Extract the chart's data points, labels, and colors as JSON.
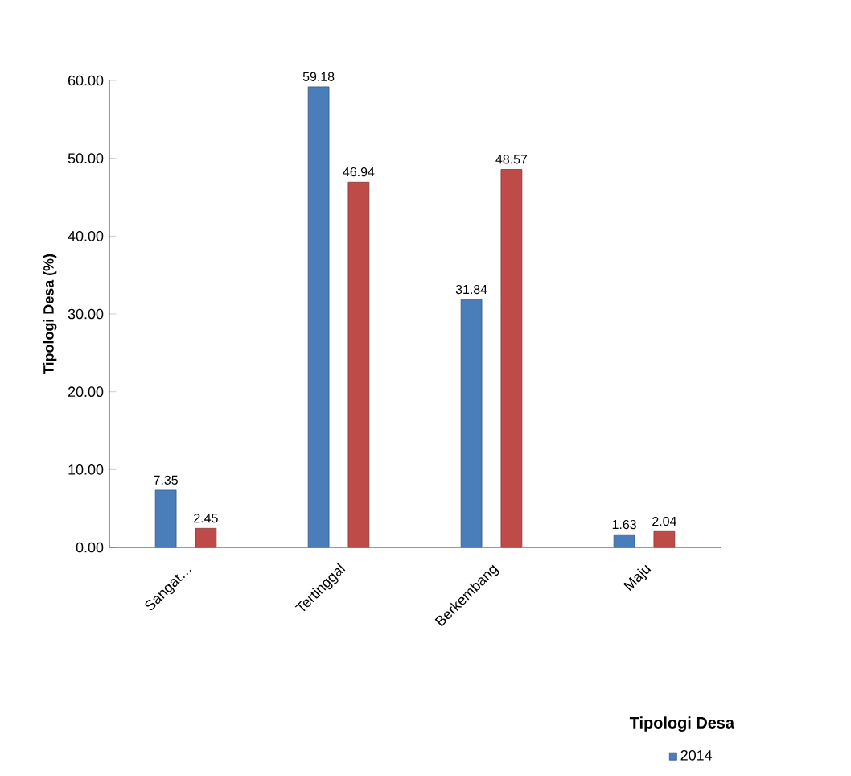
{
  "chart_data": {
    "type": "bar",
    "ylabel": "Tipologi Desa (%)",
    "legend_title": "Tipologi Desa",
    "categories": [
      "Sangat…",
      "Tertinggal",
      "Berkembang",
      "Maju"
    ],
    "series": [
      {
        "name": "2014",
        "color": "#4a7ebb",
        "values": [
          7.35,
          59.18,
          31.84,
          1.63
        ]
      },
      {
        "color": "#be4b48",
        "values": [
          2.45,
          46.94,
          48.57,
          2.04
        ]
      }
    ],
    "ylim": [
      0,
      60
    ],
    "yticks": [
      {
        "value": 0,
        "label": "0.00"
      },
      {
        "value": 10,
        "label": "10.00"
      },
      {
        "value": 20,
        "label": "20.00"
      },
      {
        "value": 30,
        "label": "30.00"
      },
      {
        "value": 40,
        "label": "40.00"
      },
      {
        "value": 50,
        "label": "50.00"
      },
      {
        "value": 60,
        "label": "60.00"
      }
    ],
    "data_labels": true,
    "grid": false,
    "legend": "bottom right"
  }
}
